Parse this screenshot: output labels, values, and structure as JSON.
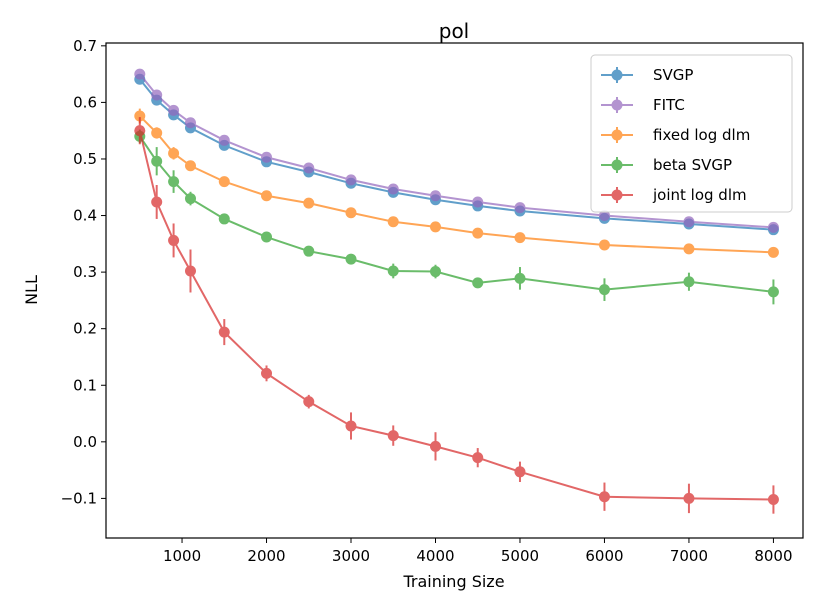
{
  "chart_data": {
    "type": "line",
    "title": "pol",
    "xlabel": "Training Size",
    "ylabel": "NLL",
    "xlim": [
      100,
      8350
    ],
    "ylim": [
      -0.17,
      0.705
    ],
    "xticks": [
      1000,
      2000,
      3000,
      4000,
      5000,
      6000,
      7000,
      8000
    ],
    "xtick_labels": [
      "1000",
      "2000",
      "3000",
      "4000",
      "5000",
      "6000",
      "7000",
      "8000"
    ],
    "yticks": [
      -0.1,
      0.0,
      0.1,
      0.2,
      0.3,
      0.4,
      0.5,
      0.6,
      0.7
    ],
    "ytick_labels": [
      "−0.1",
      "0.0",
      "0.1",
      "0.2",
      "0.3",
      "0.4",
      "0.5",
      "0.6",
      "0.7"
    ],
    "legend_position": "top-right",
    "x": [
      500,
      700,
      900,
      1100,
      1500,
      2000,
      2500,
      3000,
      3500,
      4000,
      4500,
      5000,
      6000,
      7000,
      8000
    ],
    "series": [
      {
        "name": "SVGP",
        "color": "#1f77b4",
        "values": [
          0.641,
          0.604,
          0.578,
          0.555,
          0.524,
          0.495,
          0.477,
          0.457,
          0.441,
          0.428,
          0.417,
          0.408,
          0.395,
          0.385,
          0.375
        ],
        "errors": [
          0.008,
          0.007,
          0.007,
          0.006,
          0.006,
          0.005,
          0.005,
          0.005,
          0.005,
          0.005,
          0.005,
          0.005,
          0.005,
          0.005,
          0.005
        ]
      },
      {
        "name": "FITC",
        "color": "#9467bd",
        "values": [
          0.65,
          0.613,
          0.586,
          0.564,
          0.533,
          0.503,
          0.484,
          0.463,
          0.447,
          0.435,
          0.424,
          0.414,
          0.4,
          0.389,
          0.379
        ],
        "errors": [
          0.009,
          0.007,
          0.007,
          0.006,
          0.006,
          0.005,
          0.005,
          0.005,
          0.005,
          0.005,
          0.005,
          0.005,
          0.005,
          0.005,
          0.005
        ]
      },
      {
        "name": "fixed log dlm",
        "color": "#ff7f0e",
        "values": [
          0.576,
          0.546,
          0.51,
          0.488,
          0.46,
          0.435,
          0.422,
          0.405,
          0.389,
          0.38,
          0.369,
          0.361,
          0.348,
          0.341,
          0.335
        ],
        "errors": [
          0.013,
          0.01,
          0.011,
          0.009,
          0.007,
          0.006,
          0.006,
          0.006,
          0.006,
          0.006,
          0.006,
          0.006,
          0.006,
          0.006,
          0.006
        ]
      },
      {
        "name": "beta SVGP",
        "color": "#2ca02c",
        "values": [
          0.54,
          0.496,
          0.46,
          0.43,
          0.394,
          0.362,
          0.337,
          0.323,
          0.302,
          0.301,
          0.281,
          0.289,
          0.269,
          0.283,
          0.265
        ],
        "errors": [
          0.012,
          0.025,
          0.02,
          0.012,
          0.008,
          0.007,
          0.007,
          0.008,
          0.013,
          0.012,
          0.009,
          0.02,
          0.02,
          0.016,
          0.022
        ]
      },
      {
        "name": "joint log dlm",
        "color": "#d62728",
        "values": [
          0.55,
          0.424,
          0.356,
          0.302,
          0.194,
          0.121,
          0.071,
          0.028,
          0.011,
          -0.008,
          -0.028,
          -0.053,
          -0.097,
          -0.1,
          -0.102
        ],
        "errors": [
          0.024,
          0.03,
          0.03,
          0.038,
          0.023,
          0.014,
          0.012,
          0.024,
          0.018,
          0.025,
          0.017,
          0.018,
          0.025,
          0.026,
          0.025
        ]
      }
    ]
  }
}
